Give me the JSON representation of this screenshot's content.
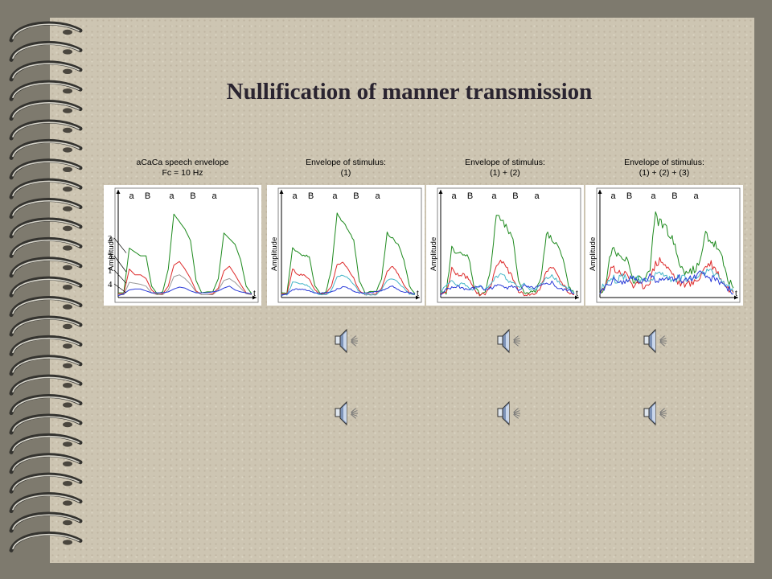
{
  "slide": {
    "title": "Nullification of manner transmission"
  },
  "speakers": {
    "row1": [
      "speaker",
      "speaker",
      "speaker"
    ],
    "row2": [
      "speaker",
      "speaker",
      "speaker"
    ]
  },
  "chart_data": [
    {
      "type": "line",
      "title": [
        "aCaCa speech envelope",
        "Fc = 10 Hz"
      ],
      "ylabel": "Amplitude",
      "xlabel": "t",
      "phoneme_labels": [
        "a",
        "B",
        "a",
        "B",
        "a"
      ],
      "curve_labels": [
        "2",
        "3",
        "1",
        "4"
      ],
      "noise": 0,
      "ylim": [
        0,
        1
      ],
      "series": [
        {
          "color": "#1e8a1e",
          "values": [
            0.05,
            0.05,
            0.52,
            0.48,
            0.44,
            0.44,
            0.12,
            0.04,
            0.06,
            0.3,
            0.88,
            0.8,
            0.72,
            0.6,
            0.18,
            0.05,
            0.06,
            0.06,
            0.2,
            0.68,
            0.62,
            0.56,
            0.4,
            0.12,
            0.04
          ]
        },
        {
          "color": "#dd2a2a",
          "values": [
            0.04,
            0.04,
            0.3,
            0.24,
            0.24,
            0.2,
            0.08,
            0.03,
            0.04,
            0.12,
            0.34,
            0.38,
            0.3,
            0.2,
            0.07,
            0.03,
            0.03,
            0.04,
            0.1,
            0.28,
            0.33,
            0.24,
            0.14,
            0.05,
            0.03
          ]
        },
        {
          "color": "#9a9a9a",
          "values": [
            0.03,
            0.03,
            0.16,
            0.15,
            0.14,
            0.12,
            0.05,
            0.03,
            0.03,
            0.08,
            0.22,
            0.24,
            0.2,
            0.14,
            0.06,
            0.03,
            0.03,
            0.03,
            0.08,
            0.18,
            0.2,
            0.16,
            0.1,
            0.04,
            0.03
          ]
        },
        {
          "color": "#2a3ad8",
          "values": [
            0.02,
            0.04,
            0.08,
            0.09,
            0.09,
            0.07,
            0.05,
            0.05,
            0.05,
            0.06,
            0.09,
            0.11,
            0.1,
            0.07,
            0.05,
            0.05,
            0.05,
            0.06,
            0.07,
            0.1,
            0.12,
            0.08,
            0.06,
            0.05,
            0.04
          ]
        }
      ]
    },
    {
      "type": "line",
      "title": [
        "Envelope of stimulus:",
        "(1)"
      ],
      "ylabel": "Amplitude",
      "xlabel": "t",
      "phoneme_labels": [
        "a",
        "B",
        "a",
        "B",
        "a"
      ],
      "curve_labels": [],
      "noise": 0.01,
      "ylim": [
        0,
        1
      ],
      "series": [
        {
          "color": "#1e8a1e",
          "values": [
            0.05,
            0.05,
            0.52,
            0.48,
            0.44,
            0.44,
            0.12,
            0.04,
            0.06,
            0.3,
            0.88,
            0.8,
            0.72,
            0.6,
            0.18,
            0.05,
            0.06,
            0.06,
            0.2,
            0.68,
            0.62,
            0.56,
            0.4,
            0.12,
            0.04
          ]
        },
        {
          "color": "#dd2a2a",
          "values": [
            0.04,
            0.04,
            0.3,
            0.24,
            0.24,
            0.2,
            0.08,
            0.03,
            0.04,
            0.12,
            0.34,
            0.38,
            0.3,
            0.2,
            0.07,
            0.03,
            0.03,
            0.04,
            0.1,
            0.28,
            0.33,
            0.24,
            0.14,
            0.05,
            0.03
          ]
        },
        {
          "color": "#46b6c8",
          "values": [
            0.03,
            0.03,
            0.16,
            0.15,
            0.14,
            0.12,
            0.05,
            0.03,
            0.03,
            0.08,
            0.22,
            0.24,
            0.2,
            0.14,
            0.06,
            0.03,
            0.03,
            0.03,
            0.08,
            0.18,
            0.2,
            0.16,
            0.1,
            0.04,
            0.03
          ]
        },
        {
          "color": "#2a3ad8",
          "values": [
            0.02,
            0.04,
            0.08,
            0.09,
            0.09,
            0.07,
            0.05,
            0.05,
            0.05,
            0.06,
            0.09,
            0.11,
            0.1,
            0.07,
            0.05,
            0.05,
            0.05,
            0.06,
            0.07,
            0.1,
            0.12,
            0.08,
            0.06,
            0.05,
            0.04
          ]
        }
      ]
    },
    {
      "type": "line",
      "title": [
        "Envelope of stimulus:",
        "(1) + (2)"
      ],
      "ylabel": "Amplitude",
      "xlabel": "t",
      "phoneme_labels": [
        "a",
        "B",
        "a",
        "B",
        "a"
      ],
      "curve_labels": [],
      "noise": 0.025,
      "ylim": [
        0,
        1
      ],
      "series": [
        {
          "color": "#1e8a1e",
          "values": [
            0.05,
            0.05,
            0.52,
            0.48,
            0.44,
            0.44,
            0.12,
            0.04,
            0.06,
            0.3,
            0.88,
            0.8,
            0.72,
            0.6,
            0.18,
            0.05,
            0.06,
            0.06,
            0.2,
            0.68,
            0.62,
            0.56,
            0.4,
            0.12,
            0.04
          ]
        },
        {
          "color": "#dd2a2a",
          "values": [
            0.04,
            0.04,
            0.3,
            0.24,
            0.24,
            0.2,
            0.08,
            0.03,
            0.04,
            0.12,
            0.34,
            0.38,
            0.3,
            0.2,
            0.07,
            0.03,
            0.03,
            0.04,
            0.1,
            0.28,
            0.33,
            0.24,
            0.14,
            0.05,
            0.03
          ]
        },
        {
          "color": "#46b6c8",
          "values": [
            0.04,
            0.14,
            0.18,
            0.12,
            0.16,
            0.1,
            0.08,
            0.12,
            0.08,
            0.14,
            0.22,
            0.26,
            0.18,
            0.16,
            0.1,
            0.14,
            0.1,
            0.08,
            0.14,
            0.2,
            0.24,
            0.18,
            0.12,
            0.1,
            0.04
          ]
        },
        {
          "color": "#2a3ad8",
          "values": [
            0.02,
            0.08,
            0.1,
            0.12,
            0.1,
            0.08,
            0.1,
            0.12,
            0.08,
            0.1,
            0.12,
            0.14,
            0.1,
            0.12,
            0.08,
            0.12,
            0.1,
            0.1,
            0.12,
            0.14,
            0.16,
            0.1,
            0.08,
            0.08,
            0.04
          ]
        }
      ]
    },
    {
      "type": "line",
      "title": [
        "Envelope of stimulus:",
        "(1) + (2) + (3)"
      ],
      "ylabel": "Amplitude",
      "xlabel": "t",
      "phoneme_labels": [
        "a",
        "B",
        "a",
        "B",
        "a"
      ],
      "curve_labels": [],
      "noise": 0.05,
      "ylim": [
        0,
        1
      ],
      "series": [
        {
          "color": "#1e8a1e",
          "values": [
            0.05,
            0.12,
            0.5,
            0.46,
            0.42,
            0.44,
            0.16,
            0.2,
            0.18,
            0.32,
            0.86,
            0.78,
            0.7,
            0.62,
            0.4,
            0.28,
            0.26,
            0.3,
            0.36,
            0.68,
            0.6,
            0.54,
            0.4,
            0.2,
            0.1
          ]
        },
        {
          "color": "#dd2a2a",
          "values": [
            0.04,
            0.1,
            0.34,
            0.28,
            0.26,
            0.24,
            0.12,
            0.14,
            0.12,
            0.18,
            0.36,
            0.4,
            0.32,
            0.26,
            0.16,
            0.14,
            0.14,
            0.16,
            0.22,
            0.34,
            0.36,
            0.28,
            0.18,
            0.1,
            0.05
          ]
        },
        {
          "color": "#46b6c8",
          "values": [
            0.06,
            0.16,
            0.22,
            0.18,
            0.24,
            0.2,
            0.22,
            0.18,
            0.16,
            0.2,
            0.24,
            0.26,
            0.22,
            0.18,
            0.2,
            0.22,
            0.18,
            0.2,
            0.22,
            0.28,
            0.26,
            0.22,
            0.18,
            0.12,
            0.06
          ]
        },
        {
          "color": "#2a3ad8",
          "values": [
            0.04,
            0.12,
            0.16,
            0.2,
            0.16,
            0.18,
            0.2,
            0.16,
            0.18,
            0.22,
            0.18,
            0.2,
            0.24,
            0.18,
            0.22,
            0.18,
            0.2,
            0.22,
            0.24,
            0.22,
            0.2,
            0.18,
            0.16,
            0.1,
            0.04
          ]
        }
      ]
    }
  ]
}
